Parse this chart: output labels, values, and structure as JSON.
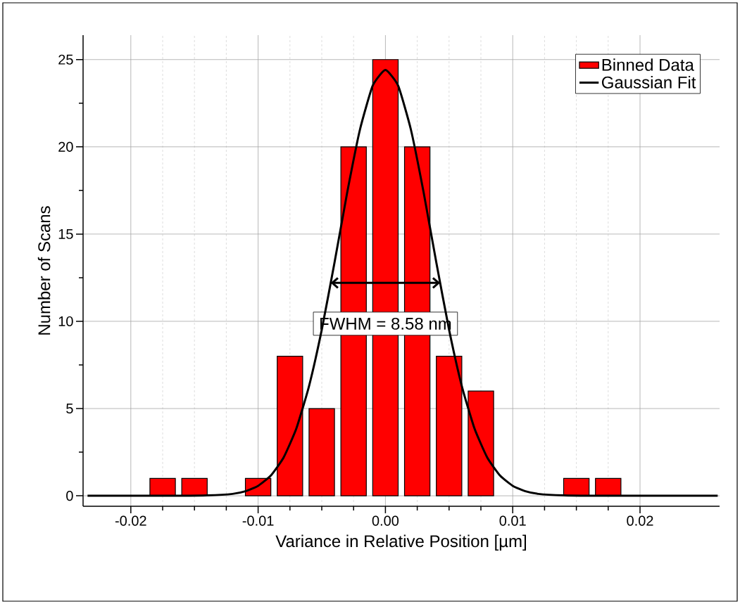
{
  "chart_data": {
    "type": "bar",
    "xlabel": "Variance in Relative Position [µm]",
    "ylabel": "Number of Scans",
    "x": [
      -0.0225,
      -0.02,
      -0.0175,
      -0.015,
      -0.0125,
      -0.01,
      -0.0075,
      -0.005,
      -0.0025,
      0,
      0.0025,
      0.005,
      0.0075,
      0.01,
      0.0125,
      0.015,
      0.0175,
      0.02,
      0.0225,
      0.025
    ],
    "series": [
      {
        "name": "Binned Data",
        "color": "#ff0000",
        "values": [
          0,
          0,
          1,
          1,
          0,
          1,
          8,
          5,
          20,
          25,
          20,
          8,
          6,
          0,
          0,
          1,
          1,
          0,
          0,
          0
        ]
      },
      {
        "name": "Gaussian Fit",
        "type": "line",
        "color": "#000000",
        "x": [
          -0.0234,
          -0.02,
          -0.016,
          -0.014,
          -0.012,
          -0.011,
          -0.01,
          -0.009,
          -0.008,
          -0.007,
          -0.006,
          -0.005,
          -0.004,
          -0.003,
          -0.002,
          -0.001,
          0,
          0.001,
          0.002,
          0.003,
          0.004,
          0.005,
          0.006,
          0.007,
          0.008,
          0.009,
          0.01,
          0.011,
          0.012,
          0.014,
          0.016,
          0.02,
          0.0261
        ],
        "values": [
          0,
          0,
          0,
          0.02,
          0.11,
          0.26,
          0.57,
          1.16,
          2.19,
          3.85,
          6.29,
          9.52,
          13.36,
          17.39,
          20.99,
          23.5,
          24.4,
          23.5,
          20.99,
          17.39,
          13.36,
          9.52,
          6.29,
          3.85,
          2.19,
          1.16,
          0.57,
          0.26,
          0.11,
          0.02,
          0,
          0,
          0
        ]
      }
    ],
    "annotations": [
      "FWHM = 8.58 nm"
    ],
    "xlim": [
      -0.02375,
      0.02625
    ],
    "ylim": [
      -0.6,
      26.4
    ],
    "xticks": [
      -0.02,
      -0.01,
      {
        "value": 0,
        "label": "0.00"
      },
      0.01,
      0.02
    ],
    "yticks": [
      0,
      5,
      10,
      15,
      20,
      25
    ],
    "grid": true,
    "legend": "top right"
  }
}
